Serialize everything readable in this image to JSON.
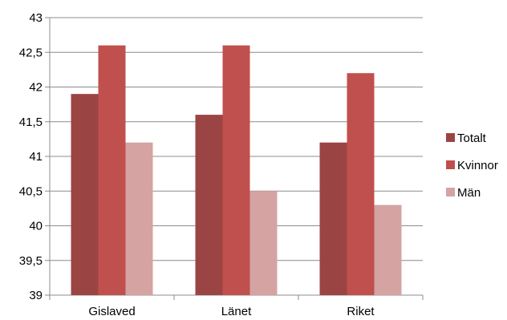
{
  "chart_data": {
    "type": "bar",
    "title": "",
    "xlabel": "",
    "ylabel": "",
    "categories": [
      "Gislaved",
      "Länet",
      "Riket"
    ],
    "series": [
      {
        "name": "Totalt",
        "values": [
          41.9,
          41.6,
          41.2
        ],
        "color": "#9b4444"
      },
      {
        "name": "Kvinnor",
        "values": [
          42.6,
          42.6,
          42.2
        ],
        "color": "#c0504d"
      },
      {
        "name": "Män",
        "values": [
          41.2,
          40.5,
          40.3
        ],
        "color": "#d4a3a2"
      }
    ],
    "ylim": [
      39,
      43
    ],
    "y_ticks": [
      "39",
      "39,5",
      "40",
      "40,5",
      "41",
      "41,5",
      "42",
      "42,5",
      "43"
    ],
    "y_tick_values": [
      39,
      39.5,
      40,
      40.5,
      41,
      41.5,
      42,
      42.5,
      43
    ],
    "grid": true,
    "legend_position": "right"
  }
}
